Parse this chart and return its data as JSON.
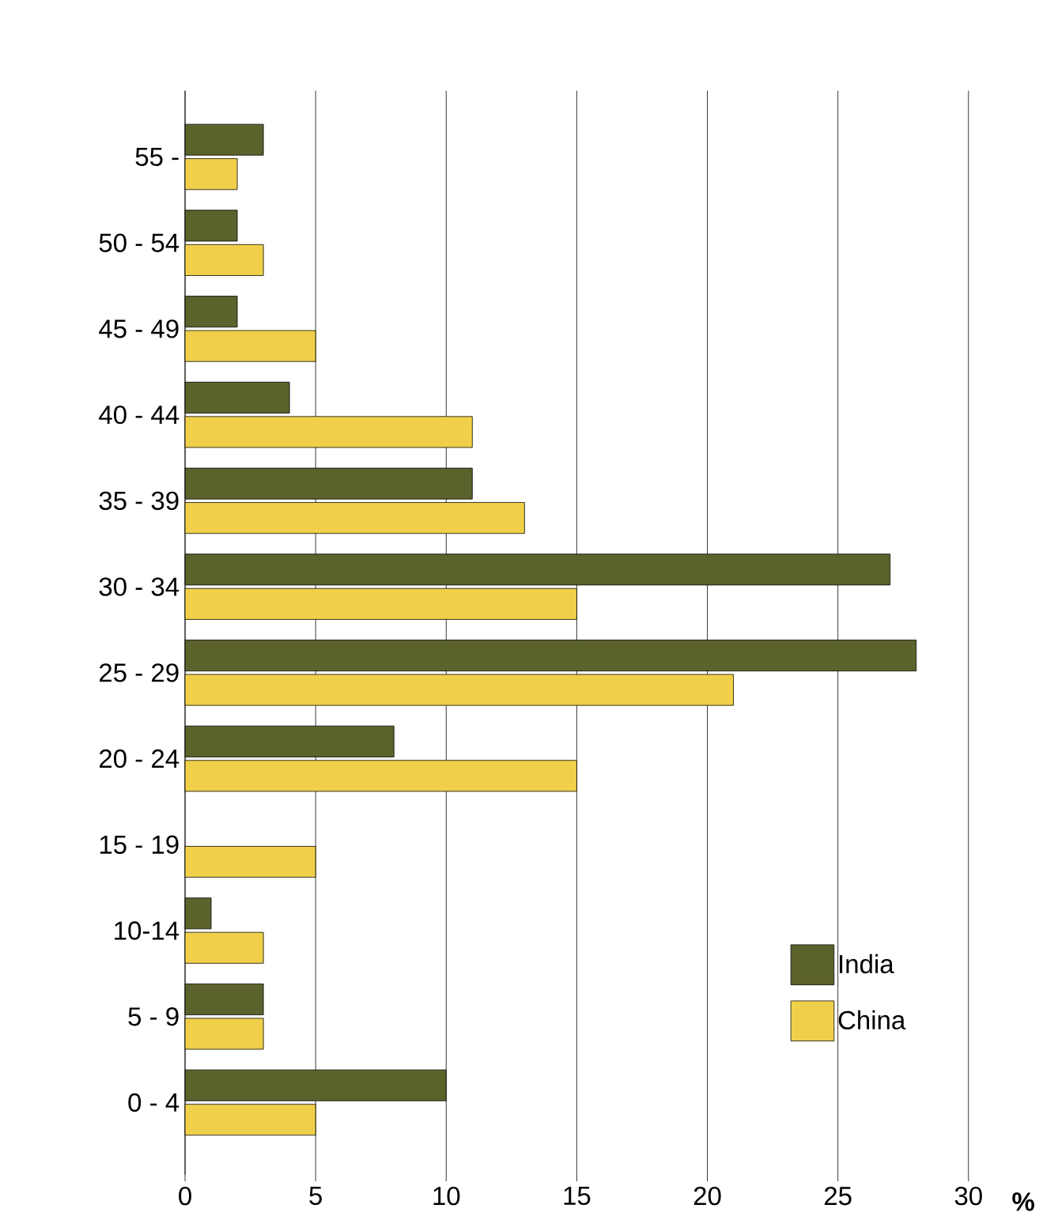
{
  "chart_data": {
    "type": "bar",
    "orientation": "horizontal",
    "xlabel": "%",
    "categories": [
      "55 -",
      "50 - 54",
      "45 - 49",
      "40 - 44",
      "35 - 39",
      "30 - 34",
      "25 - 29",
      "20 - 24",
      "15 - 19",
      "10-14",
      "5 - 9",
      "0 - 4"
    ],
    "series": [
      {
        "name": "India",
        "color": "#5c622c",
        "values": [
          3,
          2,
          2,
          4,
          11,
          27,
          28,
          8,
          null,
          1,
          3,
          10
        ]
      },
      {
        "name": "China",
        "color": "#f0d04a",
        "values": [
          2,
          3,
          5,
          11,
          13,
          15,
          21,
          15,
          5,
          3,
          3,
          5
        ]
      }
    ],
    "xlim": [
      0,
      30
    ],
    "xticks": [
      0,
      5,
      10,
      15,
      20,
      25,
      30
    ],
    "grid": "x",
    "legend": "bottom right"
  }
}
